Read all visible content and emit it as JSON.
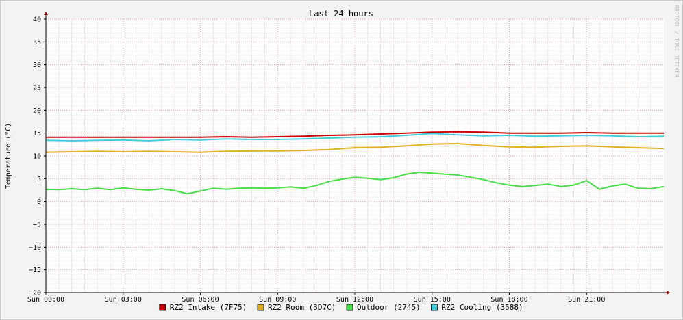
{
  "chart_data": {
    "type": "line",
    "title": "Last 24 hours",
    "ylabel": "Temperature (°C)",
    "xlabel": "",
    "ylim": [
      -20,
      40
    ],
    "xlim": [
      0,
      24
    ],
    "y_ticks": [
      -20,
      -15,
      -10,
      -5,
      0,
      5,
      10,
      15,
      20,
      25,
      30,
      35,
      40
    ],
    "x_ticks": [
      {
        "x": 0,
        "label": "Sun 00:00"
      },
      {
        "x": 3,
        "label": "Sun 03:00"
      },
      {
        "x": 6,
        "label": "Sun 06:00"
      },
      {
        "x": 9,
        "label": "Sun 09:00"
      },
      {
        "x": 12,
        "label": "Sun 12:00"
      },
      {
        "x": 15,
        "label": "Sun 15:00"
      },
      {
        "x": 18,
        "label": "Sun 18:00"
      },
      {
        "x": 21,
        "label": "Sun 21:00"
      }
    ],
    "grid": true,
    "legend_position": "bottom",
    "watermark": "RRDTOOL / TOBI OETIKER",
    "series": [
      {
        "name": "RZ2 Intake (7F75)",
        "color": "#cc0000",
        "x": [
          0,
          1,
          2,
          3,
          4,
          5,
          6,
          7,
          8,
          9,
          10,
          11,
          12,
          13,
          14,
          15,
          16,
          17,
          18,
          19,
          20,
          21,
          22,
          23,
          24
        ],
        "values": [
          14.1,
          14.1,
          14.1,
          14.1,
          14.1,
          14.1,
          14.1,
          14.2,
          14.1,
          14.2,
          14.3,
          14.5,
          14.6,
          14.8,
          15.0,
          15.2,
          15.3,
          15.2,
          15.0,
          15.0,
          15.0,
          15.1,
          15.0,
          15.0,
          15.0
        ]
      },
      {
        "name": "RZ2 Room (3D7C)",
        "color": "#e0b020",
        "x": [
          0,
          1,
          2,
          3,
          4,
          5,
          6,
          7,
          8,
          9,
          10,
          11,
          12,
          13,
          14,
          15,
          16,
          17,
          18,
          19,
          20,
          21,
          22,
          23,
          24
        ],
        "values": [
          10.8,
          10.9,
          11.0,
          10.9,
          11.0,
          10.9,
          10.8,
          11.0,
          11.1,
          11.1,
          11.2,
          11.4,
          11.8,
          11.9,
          12.2,
          12.6,
          12.7,
          12.3,
          12.0,
          11.9,
          12.1,
          12.2,
          12.0,
          11.8,
          11.6
        ]
      },
      {
        "name": "Outdoor (2745)",
        "color": "#44dd44",
        "x": [
          0,
          0.5,
          1,
          1.5,
          2,
          2.5,
          3,
          3.5,
          4,
          4.5,
          5,
          5.5,
          6,
          6.5,
          7,
          7.5,
          8,
          8.5,
          9,
          9.5,
          10,
          10.5,
          11,
          11.5,
          12,
          12.5,
          13,
          13.5,
          14,
          14.5,
          15,
          15.5,
          16,
          16.5,
          17,
          17.5,
          18,
          18.5,
          19,
          19.5,
          20,
          20.5,
          21,
          21.5,
          22,
          22.5,
          23,
          23.5,
          24
        ],
        "values": [
          2.7,
          2.6,
          2.8,
          2.6,
          2.9,
          2.6,
          3.0,
          2.7,
          2.5,
          2.8,
          2.4,
          1.7,
          2.3,
          2.9,
          2.7,
          2.9,
          3.0,
          2.9,
          3.0,
          3.2,
          2.9,
          3.5,
          4.4,
          4.9,
          5.3,
          5.1,
          4.8,
          5.2,
          6.0,
          6.4,
          6.2,
          6.0,
          5.8,
          5.3,
          4.8,
          4.1,
          3.6,
          3.3,
          3.5,
          3.8,
          3.3,
          3.6,
          4.6,
          2.7,
          3.4,
          3.8,
          2.9,
          2.8,
          3.3
        ]
      },
      {
        "name": "RZ2 Cooling (3588)",
        "color": "#44ccdd",
        "x": [
          0,
          1,
          2,
          3,
          4,
          5,
          6,
          7,
          8,
          9,
          10,
          11,
          12,
          13,
          14,
          15,
          16,
          17,
          18,
          19,
          20,
          21,
          22,
          23,
          24
        ],
        "values": [
          13.4,
          13.3,
          13.4,
          13.5,
          13.3,
          13.6,
          13.5,
          13.7,
          13.6,
          13.6,
          13.7,
          13.9,
          14.1,
          14.2,
          14.5,
          14.9,
          14.6,
          14.4,
          14.5,
          14.3,
          14.4,
          14.5,
          14.4,
          14.2,
          14.3
        ]
      }
    ]
  }
}
